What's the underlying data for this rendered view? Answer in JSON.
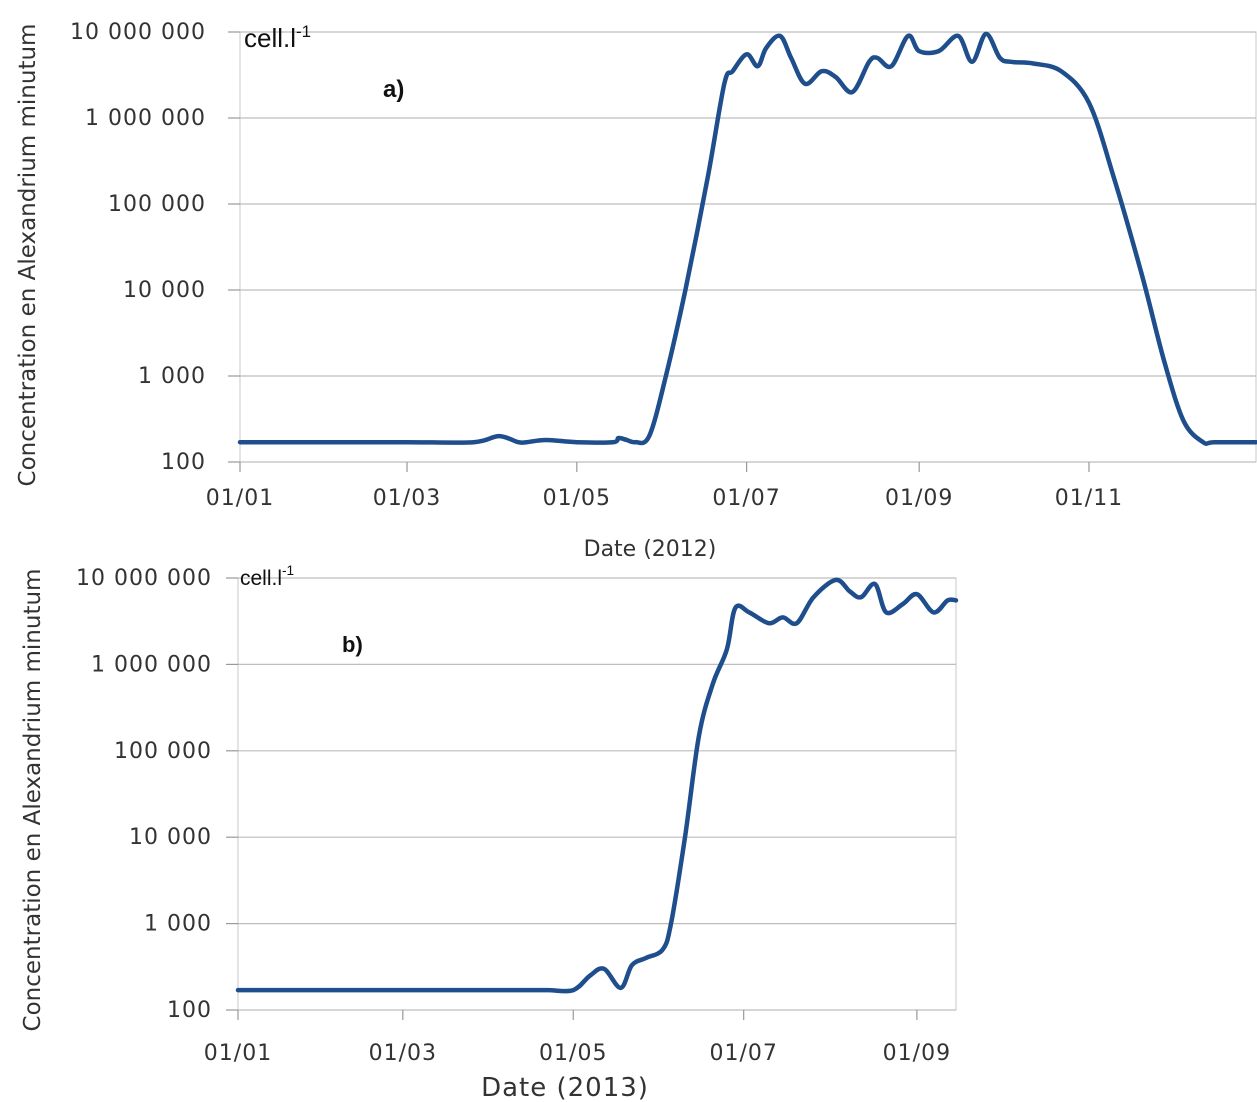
{
  "chart_data": [
    {
      "type": "line",
      "panel_label": "a)",
      "unit_label": "cell.l",
      "unit_exp": "-1",
      "xlabel": "Date (2012)",
      "ylabel": "Concentration en Alexandrium minutum",
      "yscale": "log",
      "ylim": [
        100,
        10000000
      ],
      "y_ticks": [
        "100",
        "1 000",
        "10 000",
        "100 000",
        "1 000 000",
        "10 000 000"
      ],
      "x_ticks": [
        "01/01",
        "01/03",
        "01/05",
        "01/07",
        "01/09",
        "01/11"
      ],
      "xlim": [
        "2012-01-01",
        "2012-12-31"
      ],
      "grid": true,
      "line_color": "#1f4e8c",
      "series": [
        {
          "x": [
            "2012-01-01",
            "2012-02-01",
            "2012-03-01",
            "2012-03-25",
            "2012-04-03",
            "2012-04-10",
            "2012-04-13",
            "2012-04-20",
            "2012-05-01",
            "2012-05-14",
            "2012-05-16",
            "2012-05-19",
            "2012-05-22",
            "2012-05-27",
            "2012-06-02",
            "2012-06-09",
            "2012-06-17",
            "2012-06-23",
            "2012-06-26",
            "2012-07-01",
            "2012-07-05",
            "2012-07-08",
            "2012-07-13",
            "2012-07-17",
            "2012-07-22",
            "2012-07-28",
            "2012-08-02",
            "2012-08-08",
            "2012-08-14",
            "2012-08-17",
            "2012-08-22",
            "2012-08-28",
            "2012-09-01",
            "2012-09-08",
            "2012-09-15",
            "2012-09-20",
            "2012-09-25",
            "2012-09-30",
            "2012-10-04",
            "2012-10-12",
            "2012-10-22",
            "2012-11-01",
            "2012-11-10",
            "2012-11-20",
            "2012-11-28",
            "2012-12-05",
            "2012-12-12",
            "2012-12-16",
            "2012-12-31"
          ],
          "y": [
            170,
            170,
            170,
            170,
            200,
            170,
            170,
            180,
            170,
            170,
            190,
            180,
            170,
            200,
            1000,
            10000,
            200000,
            2500000,
            3500000,
            5500000,
            4000000,
            6500000,
            9000000,
            5000000,
            2500000,
            3500000,
            3000000,
            2000000,
            4500000,
            5000000,
            4000000,
            9000000,
            6000000,
            6000000,
            9000000,
            4500000,
            9500000,
            5000000,
            4500000,
            4300000,
            3500000,
            1500000,
            200000,
            15000,
            1500,
            300,
            170,
            170,
            170
          ]
        }
      ]
    },
    {
      "type": "line",
      "panel_label": "b)",
      "unit_label": "cell.l",
      "unit_exp": "-1",
      "xlabel": "Date (2013)",
      "ylabel": "Concentration en Alexandrium minutum",
      "yscale": "log",
      "ylim": [
        100,
        10000000
      ],
      "y_ticks": [
        "100",
        "1 000",
        "10 000",
        "100 000",
        "1 000 000",
        "10 000 000"
      ],
      "x_ticks": [
        "01/01",
        "01/03",
        "01/05",
        "01/07",
        "01/09"
      ],
      "xlim": [
        "2013-01-01",
        "2013-09-15"
      ],
      "grid": true,
      "line_color": "#1f4e8c",
      "series": [
        {
          "x": [
            "2013-01-01",
            "2013-02-01",
            "2013-03-01",
            "2013-04-01",
            "2013-04-15",
            "2013-04-22",
            "2013-05-01",
            "2013-05-07",
            "2013-05-12",
            "2013-05-18",
            "2013-05-22",
            "2013-05-27",
            "2013-06-02",
            "2013-06-05",
            "2013-06-10",
            "2013-06-15",
            "2013-06-20",
            "2013-06-25",
            "2013-06-28",
            "2013-07-03",
            "2013-07-10",
            "2013-07-15",
            "2013-07-20",
            "2013-07-26",
            "2013-08-03",
            "2013-08-08",
            "2013-08-12",
            "2013-08-17",
            "2013-08-21",
            "2013-08-27",
            "2013-09-01",
            "2013-09-07",
            "2013-09-12",
            "2013-09-15"
          ],
          "y": [
            170,
            170,
            170,
            170,
            170,
            170,
            170,
            250,
            300,
            180,
            330,
            400,
            500,
            1000,
            10000,
            150000,
            600000,
            1500000,
            4500000,
            4000000,
            3000000,
            3500000,
            3000000,
            6000000,
            9500000,
            7000000,
            6000000,
            8500000,
            4000000,
            5000000,
            6500000,
            4000000,
            5500000,
            5500000
          ]
        }
      ]
    }
  ]
}
